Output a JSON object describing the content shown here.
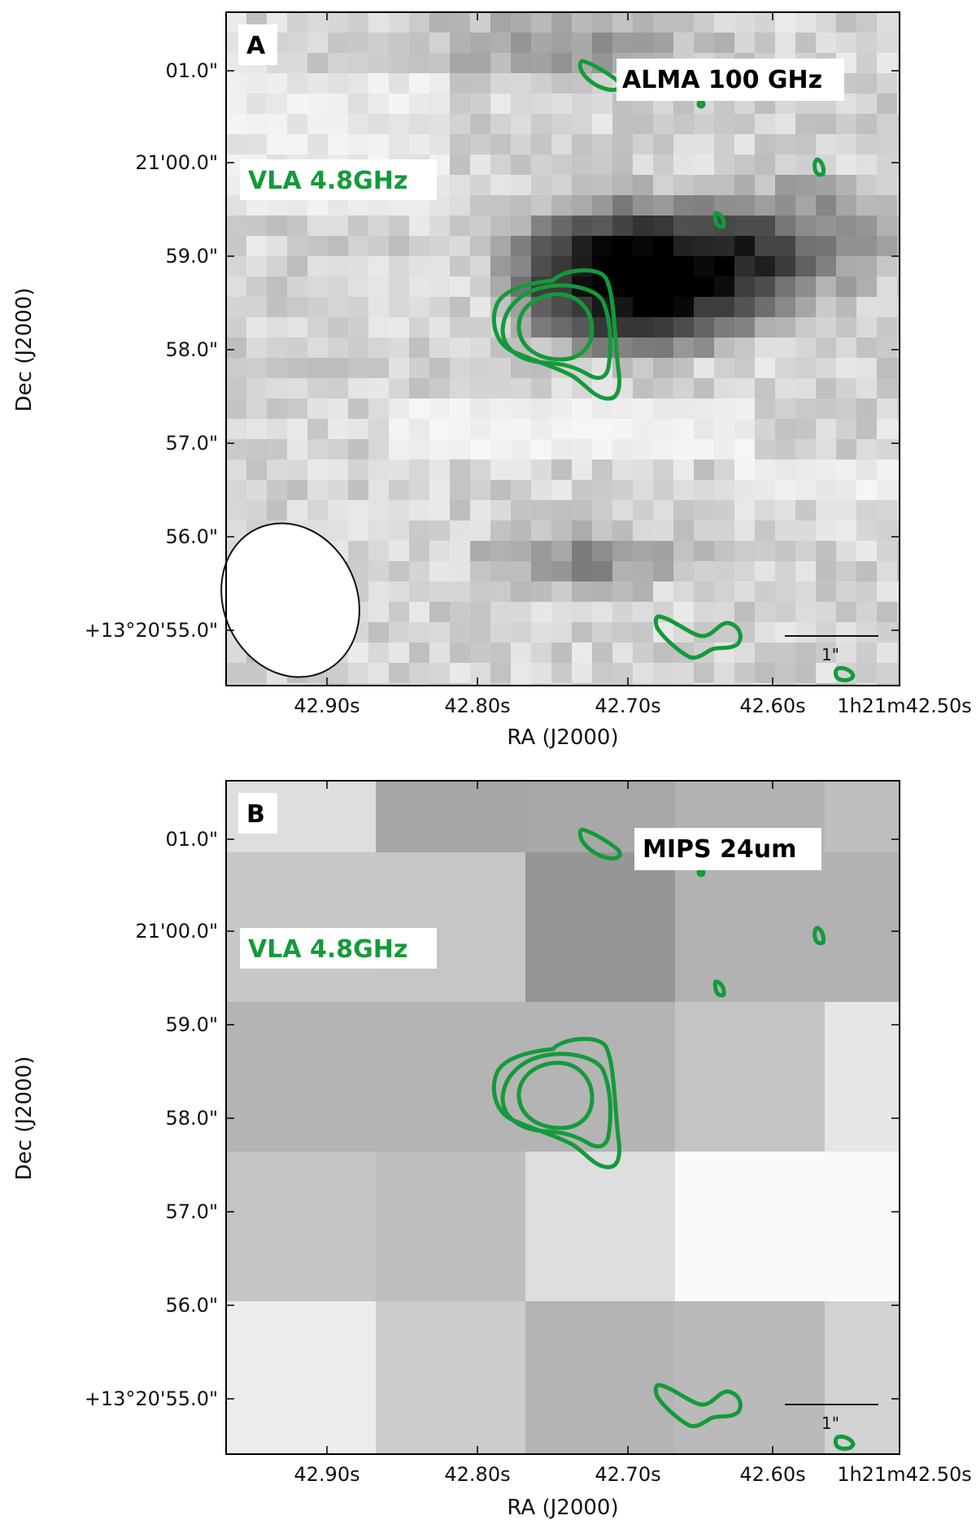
{
  "figure": {
    "panels": [
      {
        "id": "A",
        "letter": "A",
        "band_label": "ALMA 100 GHz",
        "contour_label": "VLA 4.8GHz",
        "scale_bar_label": "1\"",
        "has_beam": true
      },
      {
        "id": "B",
        "letter": "B",
        "band_label": "MIPS 24um",
        "contour_label": "VLA 4.8GHz",
        "scale_bar_label": "1\"",
        "has_beam": false
      }
    ],
    "x_axis": {
      "label": "RA (J2000)",
      "ticks": [
        "42.90s",
        "42.80s",
        "42.70s",
        "42.60s",
        "1h21m42.50s"
      ]
    },
    "y_axis": {
      "label": "Dec (J2000)",
      "ticks": [
        "01.0\"",
        "21'00.0\"",
        "59.0\"",
        "58.0\"",
        "57.0\"",
        "56.0\"",
        "+13°20'55.0\""
      ]
    },
    "colors": {
      "contour": "#149a3a",
      "frame": "#000000"
    }
  }
}
